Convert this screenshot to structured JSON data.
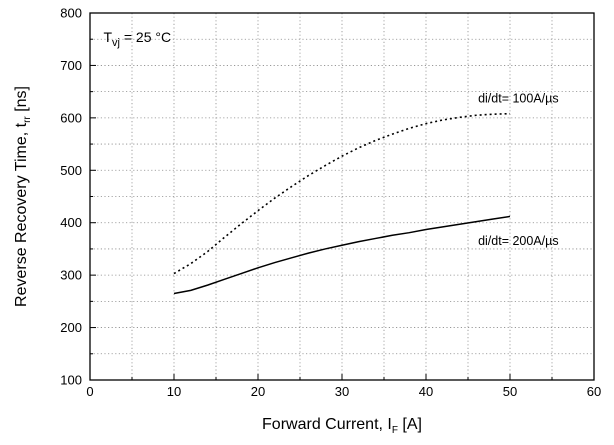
{
  "chart_data": {
    "type": "line",
    "xlabel": "Forward Current, I",
    "xlabel_sub": "F",
    "xlabel_unit": " [A]",
    "ylabel": "Reverse Recovery Time, t",
    "ylabel_sub": "rr",
    "ylabel_unit": " [ns]",
    "condition_label": "T",
    "condition_sub": "vj",
    "condition_value": "= 25 °C",
    "xlim": [
      0,
      60
    ],
    "ylim": [
      100,
      800
    ],
    "x_ticks": [
      0,
      10,
      20,
      30,
      40,
      50,
      60
    ],
    "y_ticks": [
      100,
      200,
      300,
      400,
      500,
      600,
      700,
      800
    ],
    "x_minor_step": 5,
    "y_minor_step": 50,
    "grid": true,
    "series": [
      {
        "name": "di/dt= 100A/µs",
        "style": "dotted",
        "x": [
          10,
          12,
          14,
          16,
          18,
          20,
          22,
          24,
          26,
          28,
          30,
          32,
          34,
          36,
          38,
          40,
          42,
          44,
          46,
          48,
          50
        ],
        "y": [
          303,
          322,
          345,
          372,
          398,
          423,
          447,
          469,
          490,
          509,
          527,
          543,
          557,
          569,
          580,
          589,
          596,
          601,
          605,
          607,
          608
        ]
      },
      {
        "name": "di/dt= 200A/µs",
        "style": "solid",
        "x": [
          10,
          12,
          14,
          16,
          18,
          20,
          22,
          24,
          26,
          28,
          30,
          32,
          34,
          36,
          38,
          40,
          42,
          44,
          46,
          48,
          50
        ],
        "y": [
          265,
          271,
          281,
          292,
          303,
          314,
          324,
          333,
          342,
          350,
          357,
          364,
          370,
          376,
          381,
          387,
          392,
          397,
          402,
          407,
          412
        ]
      }
    ]
  }
}
